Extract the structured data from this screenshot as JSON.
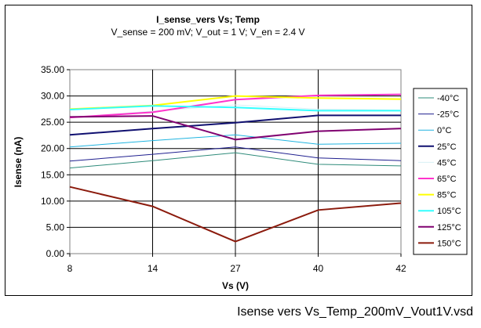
{
  "caption": "Isense vers Vs_Temp_200mV_Vout1V.vsd",
  "chart_data": {
    "type": "line",
    "title": "I_sense_vers Vs; Temp",
    "subtitle": "V_sense = 200 mV; V_out = 1 V; V_en = 2.4 V",
    "xlabel": "Vs (V)",
    "ylabel": "Isense (nA)",
    "categories": [
      "8",
      "14",
      "27",
      "40",
      "42"
    ],
    "ylim": [
      0,
      35
    ],
    "yticks": [
      "0.00",
      "5.00",
      "10.00",
      "15.00",
      "20.00",
      "25.00",
      "30.00",
      "35.00"
    ],
    "grid": true,
    "legend_position": "right",
    "series": [
      {
        "name": "-40°C",
        "color": "#2e8b7a",
        "width": 1,
        "values": [
          16.3,
          17.7,
          19.2,
          17.0,
          16.7
        ]
      },
      {
        "name": "-25°C",
        "color": "#1f1f8f",
        "width": 1,
        "values": [
          17.6,
          18.9,
          20.3,
          18.2,
          17.7
        ]
      },
      {
        "name": "0°C",
        "color": "#20b4e0",
        "width": 1,
        "values": [
          20.3,
          21.5,
          22.6,
          20.8,
          21.0
        ]
      },
      {
        "name": "25°C",
        "color": "#101070",
        "width": 2,
        "values": [
          22.6,
          23.8,
          24.9,
          26.3,
          26.3
        ]
      },
      {
        "name": "45°C",
        "color": "#d8f0f4",
        "width": 1,
        "values": [
          25.9,
          27.1,
          28.3,
          27.5,
          27.3
        ]
      },
      {
        "name": "65°C",
        "color": "#ff33cc",
        "width": 2,
        "values": [
          25.9,
          26.9,
          29.3,
          30.1,
          30.3
        ]
      },
      {
        "name": "85°C",
        "color": "#ffff00",
        "width": 2,
        "values": [
          27.5,
          28.2,
          30.0,
          29.6,
          29.4
        ]
      },
      {
        "name": "105°C",
        "color": "#33ffff",
        "width": 2,
        "values": [
          27.4,
          28.1,
          27.8,
          27.2,
          27.2
        ]
      },
      {
        "name": "125°C",
        "color": "#800070",
        "width": 2,
        "values": [
          26.0,
          26.2,
          21.7,
          23.3,
          23.8
        ]
      },
      {
        "name": "150°C",
        "color": "#8b1a0c",
        "width": 2,
        "values": [
          12.7,
          9.0,
          2.3,
          8.3,
          9.6
        ]
      }
    ]
  }
}
